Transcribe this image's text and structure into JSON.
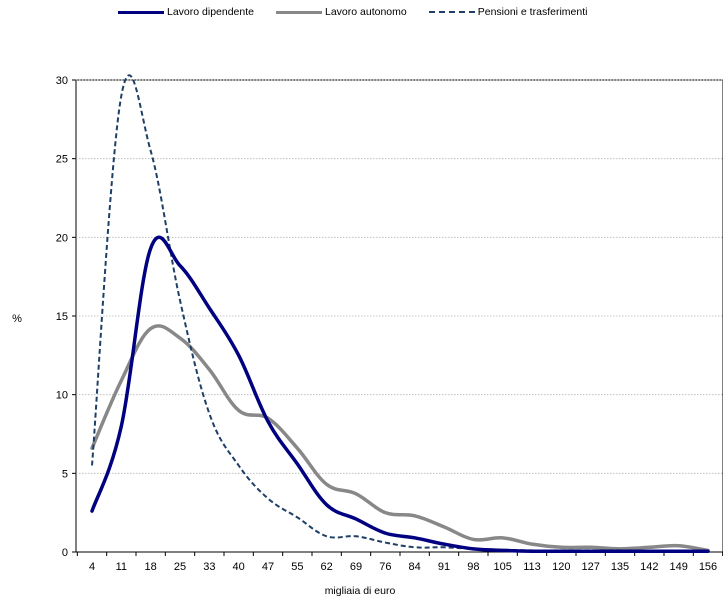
{
  "chart_data": {
    "type": "line",
    "title": "",
    "xlabel": "migliaia di euro",
    "ylabel": "%",
    "categories": [
      "4",
      "11",
      "18",
      "25",
      "33",
      "40",
      "47",
      "55",
      "62",
      "69",
      "76",
      "84",
      "91",
      "98",
      "105",
      "113",
      "120",
      "127",
      "135",
      "142",
      "149",
      "156"
    ],
    "ylim": [
      0,
      30
    ],
    "yticks": [
      0,
      5,
      10,
      15,
      20,
      25,
      30
    ],
    "grid": true,
    "legend_position": "top",
    "series": [
      {
        "name": "Lavoro dipendente",
        "color": "#000080",
        "style": "solid",
        "values": [
          2.6,
          8.0,
          19.3,
          18.2,
          15.5,
          12.5,
          8.3,
          5.6,
          3.0,
          2.1,
          1.2,
          0.9,
          0.5,
          0.2,
          0.1,
          0.05,
          0.05,
          0.05,
          0.05,
          0.05,
          0.05,
          0.05
        ]
      },
      {
        "name": "Lavoro autonomo",
        "color": "#888888",
        "style": "solid",
        "values": [
          6.6,
          10.9,
          14.2,
          13.6,
          11.6,
          9.0,
          8.5,
          6.6,
          4.3,
          3.7,
          2.5,
          2.3,
          1.6,
          0.8,
          0.9,
          0.5,
          0.3,
          0.3,
          0.2,
          0.3,
          0.4,
          0.1
        ]
      },
      {
        "name": "Pensioni e trasferimenti",
        "color": "#1f3f66",
        "style": "dashed",
        "values": [
          5.5,
          29.0,
          25.5,
          16.0,
          8.8,
          5.5,
          3.4,
          2.2,
          1.0,
          1.0,
          0.6,
          0.3,
          0.3,
          0.2,
          0.15,
          0.1,
          0.1,
          0.1,
          0.1,
          0.05,
          0.05,
          0.05
        ]
      }
    ]
  }
}
